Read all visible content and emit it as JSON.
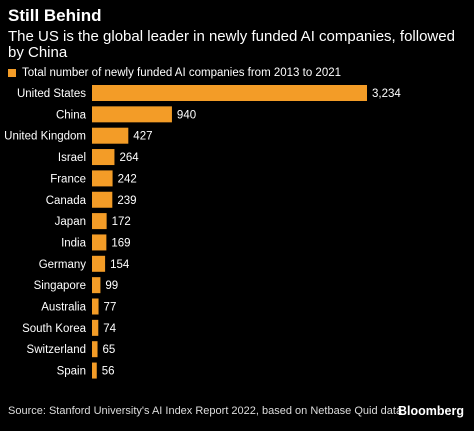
{
  "header": {
    "title": "Still Behind",
    "subtitle": "The US is the global leader in newly funded AI companies, followed by China"
  },
  "footer": {
    "source": "Source: Stanford University's AI Index Report 2022, based on Netbase Quid data",
    "logo": "Bloomberg"
  },
  "colors": {
    "bar": "#f39c27",
    "background": "#000000"
  },
  "chart_data": {
    "type": "bar",
    "orientation": "horizontal",
    "legend": [
      "Total number of newly funded AI companies from 2013 to 2021"
    ],
    "legend_placement": "top-left",
    "grid": false,
    "xlim": [
      0,
      3234
    ],
    "categories": [
      "United States",
      "China",
      "United Kingdom",
      "Israel",
      "France",
      "Canada",
      "Japan",
      "India",
      "Germany",
      "Singapore",
      "Australia",
      "South Korea",
      "Switzerland",
      "Spain"
    ],
    "values": [
      3234,
      940,
      427,
      264,
      242,
      239,
      172,
      169,
      154,
      99,
      77,
      74,
      65,
      56
    ],
    "value_labels": [
      "3,234",
      "940",
      "427",
      "264",
      "242",
      "239",
      "172",
      "169",
      "154",
      "99",
      "77",
      "74",
      "65",
      "56"
    ]
  }
}
